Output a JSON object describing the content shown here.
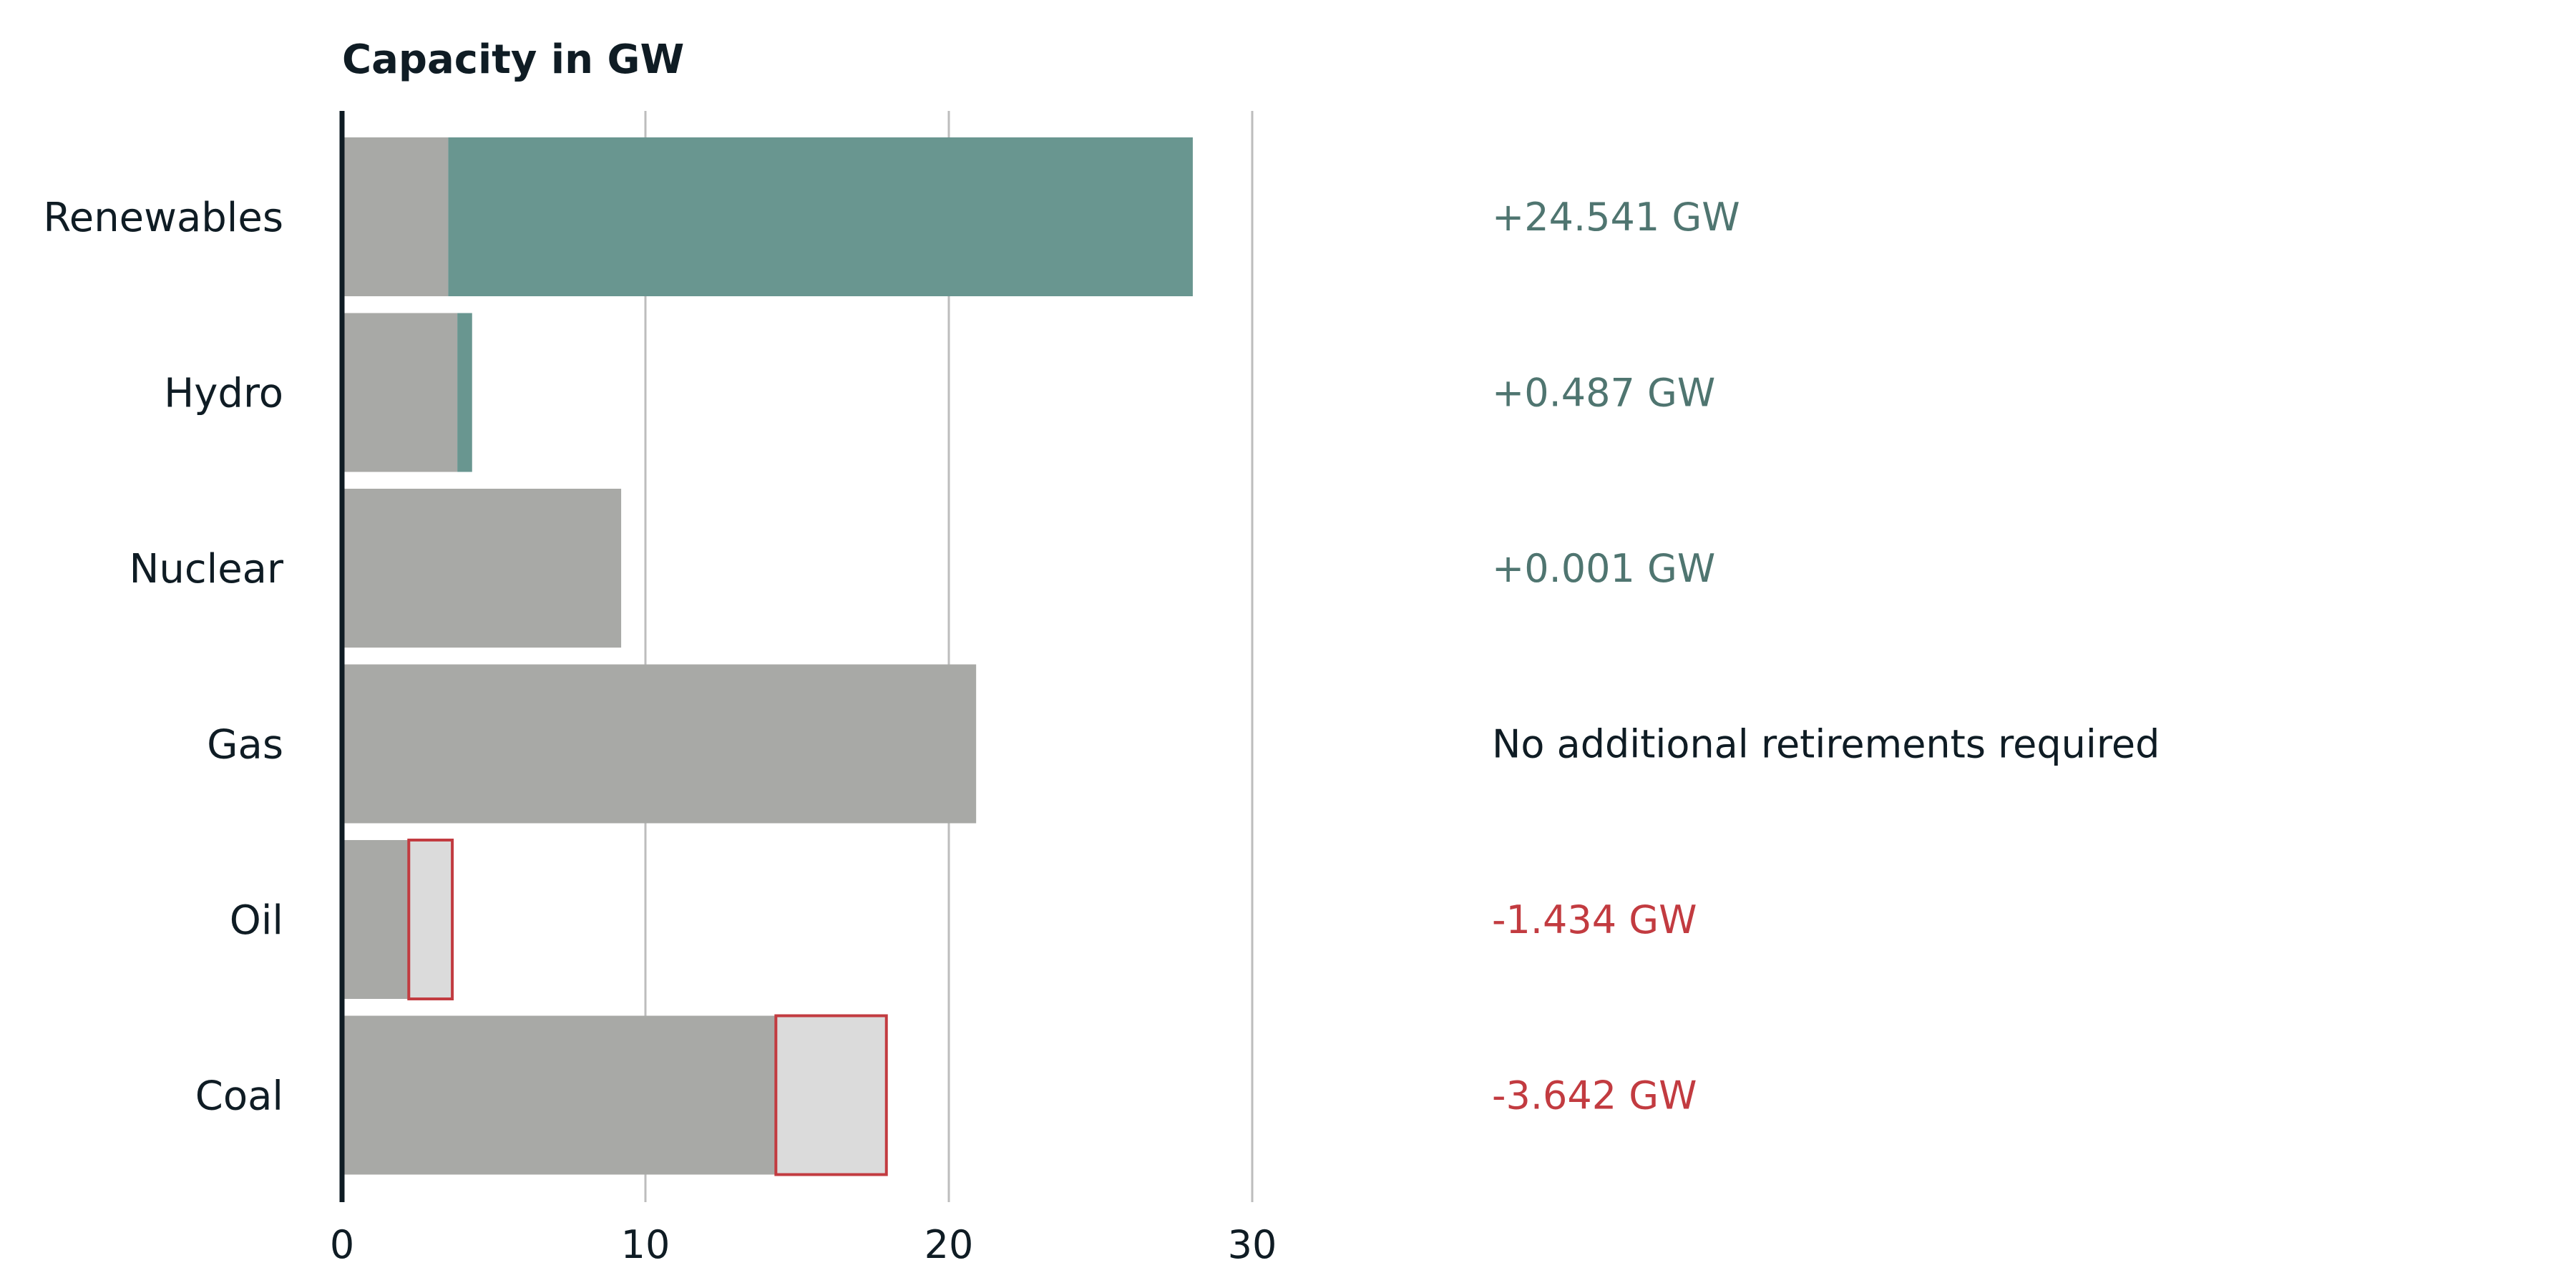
{
  "chart_data": {
    "type": "bar",
    "orientation": "horizontal",
    "title": "Capacity in  GW",
    "xlabel": "",
    "ylabel": "",
    "xlim": [
      0,
      35
    ],
    "xticks": [
      0,
      10,
      20,
      30
    ],
    "grid": true,
    "legend": "none",
    "categories": [
      "Renewables",
      "Hydro",
      "Nuclear",
      "Gas",
      "Oil",
      "Coal"
    ],
    "series": [
      {
        "values": [
          3.5,
          3.8,
          9.2,
          20.9,
          2.2,
          14.3
        ]
      },
      {
        "values": [
          24.541,
          0.487,
          0.001,
          0,
          0,
          0
        ]
      },
      {
        "values": [
          0,
          0,
          0,
          0,
          1.434,
          3.642
        ]
      }
    ],
    "annotations": [
      {
        "category": "Renewables",
        "text": "+24.541 GW",
        "kind": "addition"
      },
      {
        "category": "Hydro",
        "text": "+0.487 GW",
        "kind": "addition"
      },
      {
        "category": "Nuclear",
        "text": "+0.001 GW",
        "kind": "addition"
      },
      {
        "category": "Gas",
        "text": "No additional retirements required",
        "kind": "neutral"
      },
      {
        "category": "Oil",
        "text": "-1.434 GW",
        "kind": "retirement"
      },
      {
        "category": "Coal",
        "text": "-3.642 GW",
        "kind": "retirement"
      }
    ]
  },
  "colors": {
    "existing": "#a8a9a6",
    "addition": "#699690",
    "retirement_fill": "#dbdbdb",
    "retirement_outline": "#c23b40",
    "addition_text": "#4f7570",
    "retirement_text": "#c23b40",
    "neutral_text": "#0f1c24",
    "axis": "#0f1c24",
    "grid": "#bdbdbd"
  }
}
